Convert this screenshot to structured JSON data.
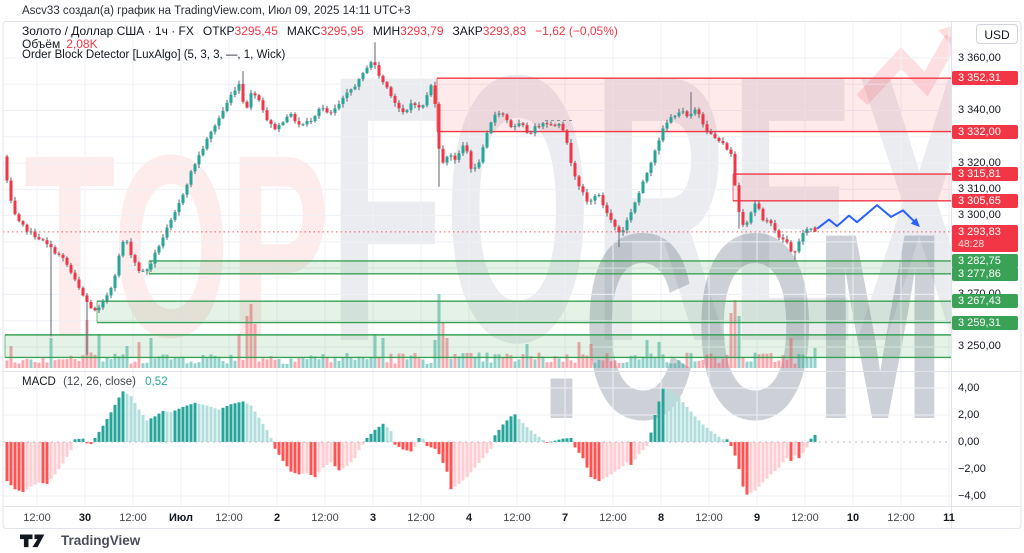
{
  "header": {
    "creation_note": "Ascv33 создал(а) график на TradingView.com, Июл 09, 2025 14:11 UTC+3"
  },
  "toolbar": {
    "currency_label": "USD"
  },
  "legend": {
    "symbol_title": "Золото / Доллар США · 1ч · FX",
    "ohlc": [
      {
        "label": "ОТКР",
        "value": "3295,45"
      },
      {
        "label": "МАКС",
        "value": "3295,95"
      },
      {
        "label": "МИН",
        "value": "3293,79"
      },
      {
        "label": "ЗАКР",
        "value": "3293,83"
      }
    ],
    "change": "−1,62 (−0,05%)",
    "volume_label": "Объём",
    "volume_value": "2,08K",
    "indicator_title": "Order Block Detector [LuxAlgo] (5, 3, 3, —, 1, Wick)"
  },
  "macd_legend": {
    "title": "MACD",
    "params": "(12, 26, close)",
    "value": "0,52"
  },
  "footer": {
    "brand": "TradingView"
  },
  "watermark": {
    "part1": "TOP",
    "part2": "FOREX",
    "part3": ".COM"
  },
  "price_scale": {
    "ticks": [
      {
        "label": "3 360,00",
        "price": 3360
      },
      {
        "label": "3 340,00",
        "price": 3340
      },
      {
        "label": "3 320,00",
        "price": 3320
      },
      {
        "label": "3 310,00",
        "price": 3310
      },
      {
        "label": "3 300,00",
        "price": 3300
      },
      {
        "label": "3 270,00",
        "price": 3270
      },
      {
        "label": "3 250,00",
        "price": 3250
      }
    ],
    "levels": [
      {
        "label": "3 352,31",
        "price": 3352.31,
        "kind": "bearish"
      },
      {
        "label": "3 332,00",
        "price": 3332.0,
        "kind": "bearish"
      },
      {
        "label": "3 315,81",
        "price": 3315.81,
        "kind": "bearish"
      },
      {
        "label": "3 305,65",
        "price": 3305.65,
        "kind": "bearish"
      },
      {
        "label": "3 282,75",
        "price": 3282.75,
        "kind": "bullish"
      },
      {
        "label": "3 277,86",
        "price": 3277.86,
        "kind": "bullish"
      },
      {
        "label": "3 267,43",
        "price": 3267.43,
        "kind": "bullish"
      },
      {
        "label": "3 259,31",
        "price": 3259.31,
        "kind": "bullish"
      }
    ],
    "current": {
      "label": "3 293,83",
      "countdown": "48:28",
      "price": 3293.83
    }
  },
  "macd_scale": {
    "ticks": [
      {
        "label": "4,00",
        "value": 4
      },
      {
        "label": "2,00",
        "value": 2
      },
      {
        "label": "0,00",
        "value": 0
      },
      {
        "label": "−2,00",
        "value": -2
      },
      {
        "label": "−4,00",
        "value": -4
      }
    ]
  },
  "time_scale": {
    "ticks": [
      {
        "label": "12:00",
        "bar": 7.5,
        "major": false
      },
      {
        "label": "30",
        "bar": 19.5,
        "major": true
      },
      {
        "label": "12:00",
        "bar": 31.5,
        "major": false
      },
      {
        "label": "Июл",
        "bar": 43.5,
        "major": true
      },
      {
        "label": "12:00",
        "bar": 55.5,
        "major": false
      },
      {
        "label": "2",
        "bar": 67.5,
        "major": true
      },
      {
        "label": "12:00",
        "bar": 79.5,
        "major": false
      },
      {
        "label": "3",
        "bar": 91.5,
        "major": true
      },
      {
        "label": "12:00",
        "bar": 103.5,
        "major": false
      },
      {
        "label": "4",
        "bar": 115.5,
        "major": true
      },
      {
        "label": "12:00",
        "bar": 127.5,
        "major": false
      },
      {
        "label": "7",
        "bar": 139.5,
        "major": true
      },
      {
        "label": "12:00",
        "bar": 151.5,
        "major": false
      },
      {
        "label": "8",
        "bar": 163.5,
        "major": true
      },
      {
        "label": "12:00",
        "bar": 175.5,
        "major": false
      },
      {
        "label": "9",
        "bar": 187.5,
        "major": true
      },
      {
        "label": "12:00",
        "bar": 199.5,
        "major": false
      },
      {
        "label": "10",
        "bar": 211.5,
        "major": true
      },
      {
        "label": "12:00",
        "bar": 223.5,
        "major": false
      },
      {
        "label": "11",
        "bar": 235.5,
        "major": true
      }
    ]
  },
  "colors": {
    "up": "#26a69a",
    "down": "#f23645",
    "wick": "#5f636d",
    "bearish_zone": "#f23645",
    "bearish_fill": "rgba(242,54,69,0.11)",
    "bullish_zone": "#3aa256",
    "bullish_fill": "rgba(62,162,86,0.14)",
    "vol_up": "rgba(38,166,154,0.5)",
    "vol_down": "rgba(247,82,95,0.5)",
    "macd_pos": "#26a69a",
    "macd_pos_weak": "#b2dfdb",
    "macd_neg": "#ff5252",
    "macd_neg_weak": "#ffcdd2",
    "current_line": "#f23645",
    "arrow": "#2962ff",
    "grid": "#eef0f6",
    "separator": "#e0e3eb"
  },
  "chart_data": {
    "type": "candlestick",
    "title": "Золото / Доллар США (XAU/USD), 1ч, FX",
    "bars": 203,
    "ohlc_last": {
      "open": 3295.45,
      "high": 3295.95,
      "low": 3293.79,
      "close": 3293.83
    },
    "volume_last": "2,08K",
    "price_axis_range": [
      3241,
      3372
    ],
    "current_price": 3293.83,
    "price_swings": [
      [
        0,
        3321
      ],
      [
        1,
        3308
      ],
      [
        3,
        3298
      ],
      [
        6,
        3294
      ],
      [
        9,
        3291
      ],
      [
        12,
        3287
      ],
      [
        15,
        3283
      ],
      [
        17,
        3277
      ],
      [
        19,
        3271
      ],
      [
        21,
        3266
      ],
      [
        23,
        3263
      ],
      [
        25,
        3268
      ],
      [
        27,
        3274
      ],
      [
        29,
        3287
      ],
      [
        30,
        3292
      ],
      [
        32,
        3284
      ],
      [
        34,
        3278
      ],
      [
        36,
        3280
      ],
      [
        39,
        3290
      ],
      [
        43,
        3302
      ],
      [
        47,
        3318
      ],
      [
        51,
        3330
      ],
      [
        55,
        3341
      ],
      [
        57,
        3347
      ],
      [
        59,
        3351
      ],
      [
        60,
        3339
      ],
      [
        62,
        3348
      ],
      [
        64,
        3343
      ],
      [
        66,
        3335
      ],
      [
        68,
        3333
      ],
      [
        71,
        3339
      ],
      [
        74,
        3334
      ],
      [
        77,
        3337
      ],
      [
        79,
        3342
      ],
      [
        81,
        3338
      ],
      [
        83,
        3341
      ],
      [
        86,
        3347
      ],
      [
        89,
        3352
      ],
      [
        91,
        3358
      ],
      [
        92,
        3359
      ],
      [
        94,
        3352
      ],
      [
        96,
        3348
      ],
      [
        98,
        3342
      ],
      [
        100,
        3338
      ],
      [
        102,
        3344
      ],
      [
        104,
        3340
      ],
      [
        106,
        3347
      ],
      [
        107,
        3351
      ],
      [
        108,
        3338
      ],
      [
        109,
        3318
      ],
      [
        111,
        3324
      ],
      [
        113,
        3321
      ],
      [
        115,
        3328
      ],
      [
        117,
        3316
      ],
      [
        119,
        3322
      ],
      [
        121,
        3333
      ],
      [
        123,
        3340
      ],
      [
        125,
        3338
      ],
      [
        127,
        3333
      ],
      [
        129,
        3335
      ],
      [
        131,
        3331
      ],
      [
        133,
        3334
      ],
      [
        135,
        3336
      ],
      [
        137,
        3334
      ],
      [
        139,
        3336
      ],
      [
        140,
        3331
      ],
      [
        142,
        3318
      ],
      [
        144,
        3310
      ],
      [
        146,
        3304
      ],
      [
        148,
        3309
      ],
      [
        150,
        3303
      ],
      [
        152,
        3297
      ],
      [
        154,
        3293
      ],
      [
        155,
        3296
      ],
      [
        157,
        3303
      ],
      [
        159,
        3310
      ],
      [
        161,
        3318
      ],
      [
        163,
        3327
      ],
      [
        165,
        3334
      ],
      [
        167,
        3338
      ],
      [
        169,
        3340
      ],
      [
        171,
        3337
      ],
      [
        173,
        3341
      ],
      [
        175,
        3334
      ],
      [
        177,
        3330
      ],
      [
        179,
        3328
      ],
      [
        181,
        3325
      ],
      [
        182,
        3322
      ],
      [
        183,
        3305
      ],
      [
        184,
        3299
      ],
      [
        185,
        3296
      ],
      [
        186,
        3299
      ],
      [
        187,
        3303
      ],
      [
        188,
        3306
      ],
      [
        189,
        3300
      ],
      [
        190,
        3296
      ],
      [
        191,
        3299
      ],
      [
        192,
        3297
      ],
      [
        193,
        3293
      ],
      [
        194,
        3290
      ],
      [
        195,
        3292
      ],
      [
        196,
        3288
      ],
      [
        197,
        3285
      ],
      [
        198,
        3288
      ],
      [
        199,
        3291
      ],
      [
        200,
        3294
      ],
      [
        201,
        3296
      ],
      [
        202,
        3294
      ]
    ],
    "wick_events": [
      {
        "bar": 11,
        "low": 3254
      },
      {
        "bar": 20,
        "low": 3247
      },
      {
        "bar": 59,
        "high": 3355
      },
      {
        "bar": 92,
        "high": 3366
      },
      {
        "bar": 108,
        "low": 3311
      },
      {
        "bar": 153,
        "low": 3288
      },
      {
        "bar": 171,
        "high": 3347
      },
      {
        "bar": 183,
        "low": 3295
      },
      {
        "bar": 197,
        "low": 3283
      }
    ],
    "order_blocks": [
      {
        "kind": "bearish",
        "top": 3352.31,
        "bottom": 3332.0,
        "from_bar": 108
      },
      {
        "kind": "bearish",
        "top": 3315.81,
        "bottom": 3305.65,
        "from_bar": 182
      },
      {
        "kind": "bullish",
        "top": 3282.75,
        "bottom": 3277.86,
        "from_bar": 36
      },
      {
        "kind": "bullish",
        "top": 3267.43,
        "bottom": 3259.31,
        "from_bar": 23
      },
      {
        "kind": "bullish",
        "top": 3254.6,
        "bottom": 3246.0,
        "from_bar": 0
      }
    ],
    "mitigation_dash": {
      "from_bar": 134.5,
      "to_bar": 141.5,
      "price": 3336.2
    },
    "projection_arrow": [
      [
        202.5,
        3295
      ],
      [
        205.5,
        3298.5
      ],
      [
        207.5,
        3296
      ],
      [
        210.5,
        3300
      ],
      [
        212.5,
        3297.5
      ],
      [
        217.5,
        3304
      ],
      [
        221,
        3299.5
      ],
      [
        224,
        3302
      ],
      [
        227,
        3297.5
      ]
    ],
    "volume_spikes": [
      [
        1,
        22,
        "down"
      ],
      [
        11,
        30,
        "up"
      ],
      [
        20,
        48,
        "down"
      ],
      [
        23,
        34,
        "up"
      ],
      [
        30,
        22,
        "up"
      ],
      [
        33,
        26,
        "down"
      ],
      [
        36,
        30,
        "up"
      ],
      [
        58,
        34,
        "down"
      ],
      [
        60,
        52,
        "down"
      ],
      [
        61,
        64,
        "down"
      ],
      [
        62,
        44,
        "down"
      ],
      [
        92,
        34,
        "up"
      ],
      [
        94,
        30,
        "up"
      ],
      [
        107,
        28,
        "up"
      ],
      [
        108,
        74,
        "up"
      ],
      [
        109,
        46,
        "down"
      ],
      [
        110,
        30,
        "down"
      ],
      [
        130,
        24,
        "up"
      ],
      [
        143,
        26,
        "down"
      ],
      [
        146,
        24,
        "down"
      ],
      [
        160,
        28,
        "up"
      ],
      [
        163,
        26,
        "up"
      ],
      [
        181,
        55,
        "down"
      ],
      [
        182,
        68,
        "down"
      ],
      [
        183,
        52,
        "up"
      ],
      [
        196,
        30,
        "down"
      ],
      [
        202,
        20,
        "up"
      ]
    ],
    "macd": {
      "params": "(12, 26, close)",
      "last_value": 0.52,
      "axis_range": [
        -4.6,
        4.6
      ],
      "anchors": [
        [
          0,
          -2.9
        ],
        [
          2,
          -3.5
        ],
        [
          4,
          -3.7
        ],
        [
          6,
          -3.3
        ],
        [
          8,
          -3.0
        ],
        [
          10,
          -3.1
        ],
        [
          12,
          -2.4
        ],
        [
          14,
          -1.6
        ],
        [
          16,
          -0.6
        ],
        [
          17,
          0.2
        ],
        [
          19,
          0.25
        ],
        [
          20,
          -0.1
        ],
        [
          21,
          -0.15
        ],
        [
          22,
          0.3
        ],
        [
          24,
          1.2
        ],
        [
          26,
          2.2
        ],
        [
          28,
          3.3
        ],
        [
          29,
          3.75
        ],
        [
          31,
          3.4
        ],
        [
          33,
          2.4
        ],
        [
          35,
          1.6
        ],
        [
          37,
          1.9
        ],
        [
          39,
          2.3
        ],
        [
          41,
          2.2
        ],
        [
          44,
          2.6
        ],
        [
          47,
          2.9
        ],
        [
          50,
          2.7
        ],
        [
          53,
          2.4
        ],
        [
          56,
          2.8
        ],
        [
          59,
          3.0
        ],
        [
          61,
          2.7
        ],
        [
          63,
          1.8
        ],
        [
          65,
          0.9
        ],
        [
          66,
          0.3
        ],
        [
          67,
          -0.5
        ],
        [
          69,
          -1.4
        ],
        [
          71,
          -2.2
        ],
        [
          73,
          -2.4
        ],
        [
          75,
          -2.3
        ],
        [
          77,
          -2.6
        ],
        [
          79,
          -1.9
        ],
        [
          81,
          -1.5
        ],
        [
          83,
          -2.1
        ],
        [
          85,
          -1.8
        ],
        [
          87,
          -1.2
        ],
        [
          88,
          -0.6
        ],
        [
          89,
          -0.2
        ],
        [
          90,
          0.3
        ],
        [
          92,
          0.9
        ],
        [
          94,
          1.35
        ],
        [
          95,
          1.1
        ],
        [
          96,
          0.8
        ],
        [
          97,
          -0.2
        ],
        [
          99,
          -0.55
        ],
        [
          101,
          -0.7
        ],
        [
          102,
          -0.35
        ],
        [
          103,
          0.3
        ],
        [
          104,
          0.25
        ],
        [
          105,
          -0.3
        ],
        [
          107,
          -0.5
        ],
        [
          108,
          -0.9
        ],
        [
          110,
          -2.2
        ],
        [
          111,
          -3.5
        ],
        [
          113,
          -3.1
        ],
        [
          115,
          -2.6
        ],
        [
          117,
          -1.9
        ],
        [
          119,
          -1.2
        ],
        [
          121,
          -0.5
        ],
        [
          122,
          0.5
        ],
        [
          124,
          1.3
        ],
        [
          126,
          1.9
        ],
        [
          127,
          2.05
        ],
        [
          128,
          1.7
        ],
        [
          130,
          1.1
        ],
        [
          132,
          0.6
        ],
        [
          134,
          0.15
        ],
        [
          135,
          -0.05
        ],
        [
          137,
          0.1
        ],
        [
          139,
          0.25
        ],
        [
          141,
          0.3
        ],
        [
          142,
          -0.4
        ],
        [
          144,
          -1.2
        ],
        [
          146,
          -2.6
        ],
        [
          148,
          -2.9
        ],
        [
          150,
          -2.6
        ],
        [
          152,
          -2.2
        ],
        [
          154,
          -1.8
        ],
        [
          155,
          -1.5
        ],
        [
          156,
          -1.7
        ],
        [
          158,
          -0.9
        ],
        [
          160,
          -0.3
        ],
        [
          161,
          0.7
        ],
        [
          162,
          2.0
        ],
        [
          163,
          3.0
        ],
        [
          164,
          3.95
        ],
        [
          166,
          3.9
        ],
        [
          168,
          3.3
        ],
        [
          170,
          2.6
        ],
        [
          172,
          1.9
        ],
        [
          174,
          1.3
        ],
        [
          176,
          0.8
        ],
        [
          178,
          0.4
        ],
        [
          179,
          0.2
        ],
        [
          180,
          0.2
        ],
        [
          181,
          -0.3
        ],
        [
          182,
          -1.0
        ],
        [
          183,
          -2.0
        ],
        [
          184,
          -3.3
        ],
        [
          185,
          -3.9
        ],
        [
          187,
          -3.6
        ],
        [
          189,
          -3.0
        ],
        [
          191,
          -2.4
        ],
        [
          193,
          -1.9
        ],
        [
          194,
          -1.5
        ],
        [
          195,
          -1.2
        ],
        [
          196,
          -1.4
        ],
        [
          197,
          -1.0
        ],
        [
          198,
          -1.2
        ],
        [
          199,
          -0.8
        ],
        [
          200,
          -0.4
        ],
        [
          201,
          0.25
        ],
        [
          202,
          0.52
        ]
      ]
    }
  }
}
